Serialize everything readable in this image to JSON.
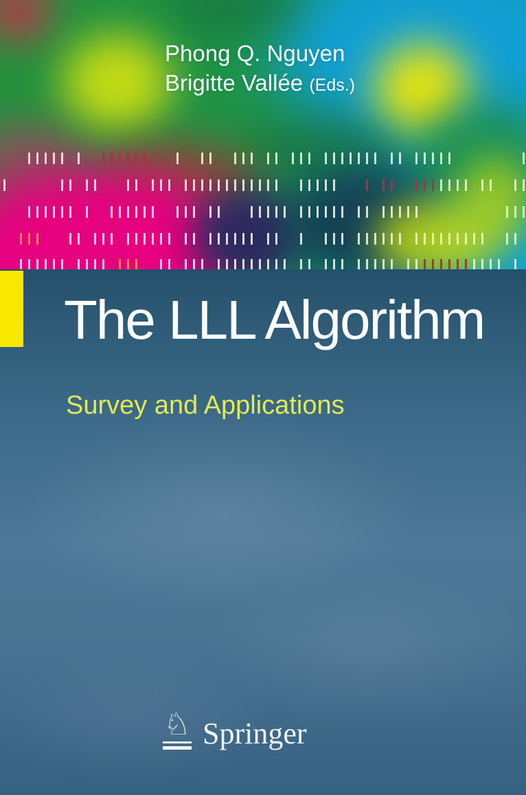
{
  "cover": {
    "author_line1": "Phong Q. Nguyen",
    "author_line2": "Brigitte Vallée",
    "editors_suffix": "(Eds.)",
    "title": "The LLL Algorithm",
    "subtitle": "Survey and Applications",
    "publisher": "Springer",
    "springer_horse_glyph": "♘"
  },
  "colors": {
    "panel_top": "#24506b",
    "panel_mid": "#4d7897",
    "panel_bottom": "#356180",
    "magenta": "#e6017e",
    "cyan": "#129fd4",
    "yellow_blob": "#e3e312",
    "yellow_green": "#c3da16",
    "navy": "#2c2a60",
    "dark_slate": "#143a52",
    "red_blob": "#b43a4a",
    "brown": "#8a4a35",
    "accent_square": "#f8e800",
    "subtitle_yellow": "#e2ea55",
    "title_white": "#fafdff",
    "tick_white": "#efe9d8",
    "tick_red": "#c9243e",
    "tick_orange": "#e0951f"
  },
  "art": {
    "tick_rows": [
      "000111110100rrrrrr0001001100111011011101111111011011111000000001",
      "10000001101100011011101111111111110011111000r0rr00rrr11110110011",
      "0001111110100111111001110110001111101111110110111110000000000111",
      "00ooo00011011101111110110111111011001001110111111011111111100110",
      "00111111011110ooo0011011101111111110110111011111011rrrrrr111101"
    ]
  }
}
